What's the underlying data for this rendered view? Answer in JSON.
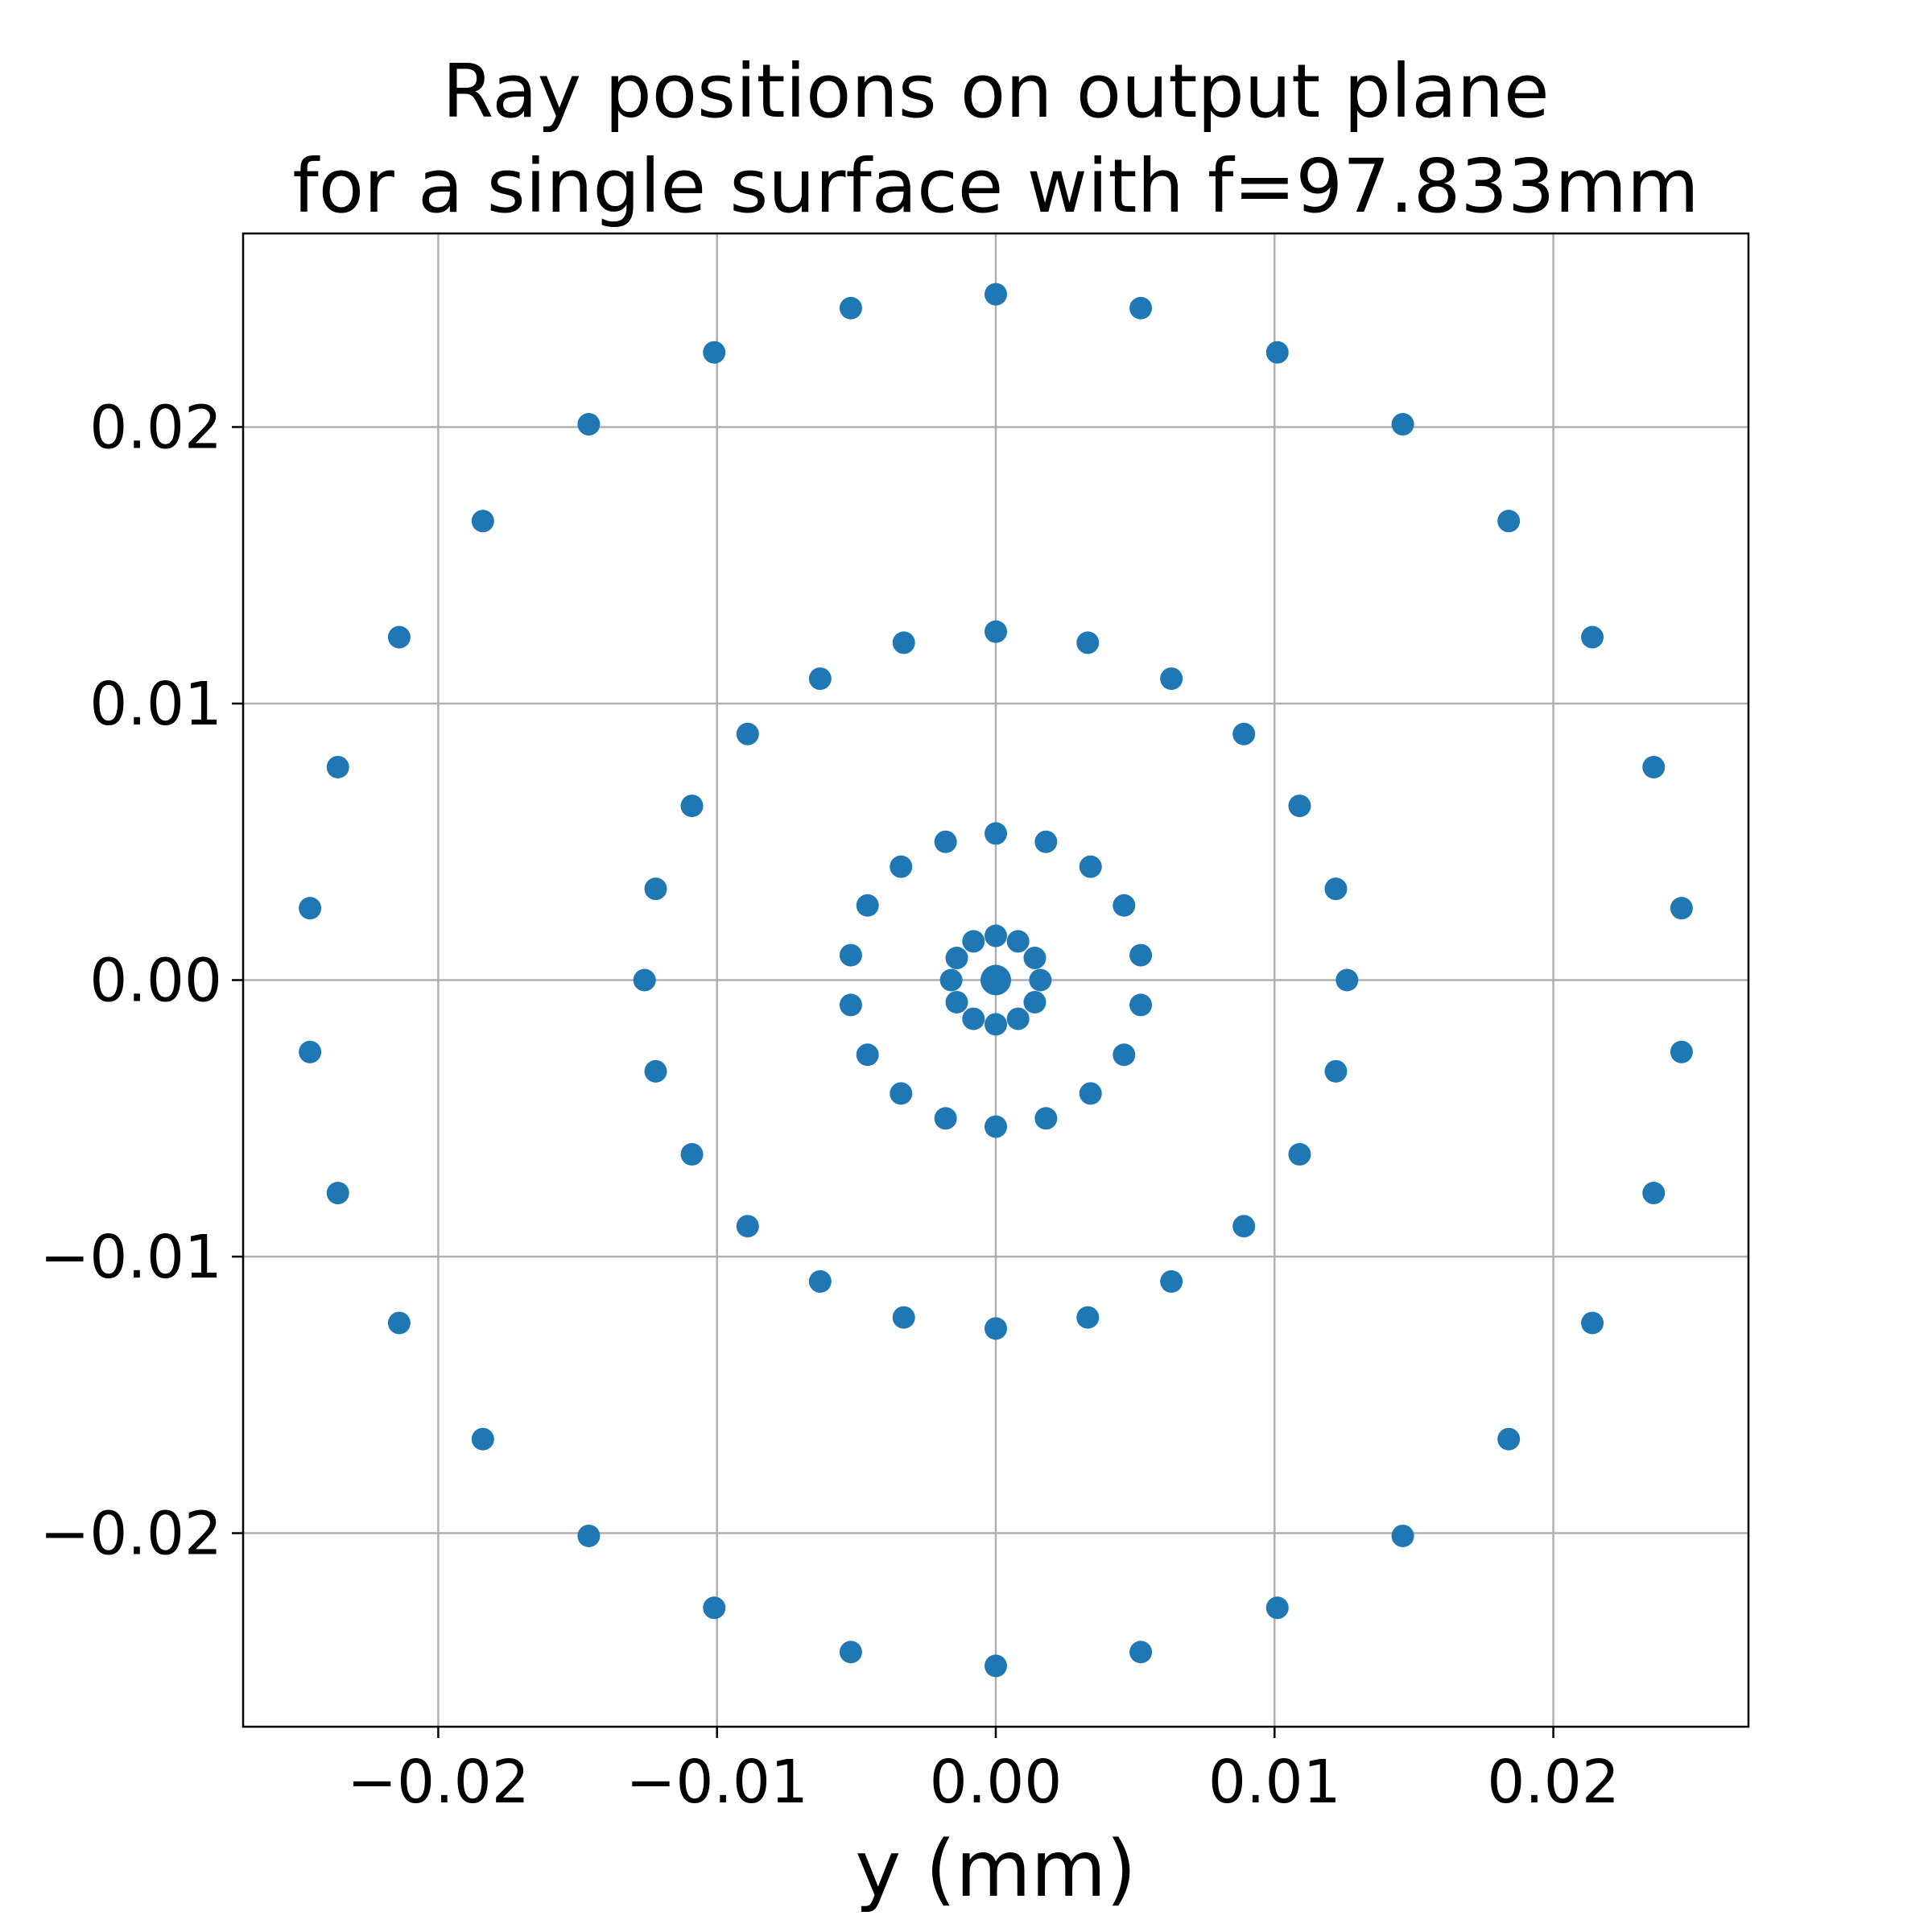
{
  "chart_data": {
    "type": "scatter",
    "title": [
      "Ray positions on output plane",
      "for a single surface with f=97.833mm"
    ],
    "xlabel": "y (mm)",
    "ylabel": "",
    "xlim": [
      -0.027,
      0.027
    ],
    "ylim": [
      -0.027,
      0.027
    ],
    "xticks": [
      -0.02,
      -0.01,
      0.0,
      0.01,
      0.02
    ],
    "yticks": [
      -0.02,
      -0.01,
      0.0,
      0.01,
      0.02
    ],
    "xtick_labels": [
      "−0.02",
      "−0.01",
      "0.00",
      "0.01",
      "0.02"
    ],
    "ytick_labels": [
      "−0.02",
      "−0.01",
      "0.00",
      "0.01",
      "0.02"
    ],
    "grid": true,
    "marker_color": "#1f77b4",
    "series": [
      {
        "points": [
          [
            0.0,
            0.0
          ],
          [
            0.0,
            0.0016
          ],
          [
            0.0008,
            0.0014
          ],
          [
            0.0014,
            0.0008
          ],
          [
            0.0016,
            0.0
          ],
          [
            0.0014,
            -0.0008
          ],
          [
            0.0008,
            -0.0014
          ],
          [
            0.0,
            -0.0016
          ],
          [
            -0.0008,
            -0.0014
          ],
          [
            -0.0014,
            -0.0008
          ],
          [
            -0.0016,
            0.0
          ],
          [
            -0.0014,
            0.0008
          ],
          [
            -0.0008,
            0.0014
          ],
          [
            0.0,
            0.0053
          ],
          [
            0.0018,
            0.005
          ],
          [
            0.0034,
            0.0041
          ],
          [
            0.0046,
            0.0027
          ],
          [
            0.0052,
            0.0009
          ],
          [
            0.0052,
            -0.0009
          ],
          [
            0.0046,
            -0.0027
          ],
          [
            0.0034,
            -0.0041
          ],
          [
            0.0018,
            -0.005
          ],
          [
            0.0,
            -0.0053
          ],
          [
            -0.0018,
            -0.005
          ],
          [
            -0.0034,
            -0.0041
          ],
          [
            -0.0046,
            -0.0027
          ],
          [
            -0.0052,
            -0.0009
          ],
          [
            -0.0052,
            0.0009
          ],
          [
            -0.0046,
            0.0027
          ],
          [
            -0.0034,
            0.0041
          ],
          [
            -0.0018,
            0.005
          ],
          [
            0.0,
            0.0126
          ],
          [
            0.0033,
            0.0122
          ],
          [
            0.0063,
            0.0109
          ],
          [
            0.0089,
            0.0089
          ],
          [
            0.0109,
            0.0063
          ],
          [
            0.0122,
            0.0033
          ],
          [
            0.0126,
            0.0
          ],
          [
            0.0122,
            -0.0033
          ],
          [
            0.0109,
            -0.0063
          ],
          [
            0.0089,
            -0.0089
          ],
          [
            0.0063,
            -0.0109
          ],
          [
            0.0033,
            -0.0122
          ],
          [
            0.0,
            -0.0126
          ],
          [
            -0.0033,
            -0.0122
          ],
          [
            -0.0063,
            -0.0109
          ],
          [
            -0.0089,
            -0.0089
          ],
          [
            -0.0109,
            -0.0063
          ],
          [
            -0.0122,
            -0.0033
          ],
          [
            -0.0126,
            0.0
          ],
          [
            -0.0122,
            0.0033
          ],
          [
            -0.0109,
            0.0063
          ],
          [
            -0.0089,
            0.0089
          ],
          [
            -0.0063,
            0.0109
          ],
          [
            -0.0033,
            0.0122
          ],
          [
            0.0,
            0.0248
          ],
          [
            0.0052,
            0.0243
          ],
          [
            0.0101,
            0.0227
          ],
          [
            0.0146,
            0.0201
          ],
          [
            0.0184,
            0.0166
          ],
          [
            0.0214,
            0.0124
          ],
          [
            0.0236,
            0.0077
          ],
          [
            0.0246,
            0.0026
          ],
          [
            0.0246,
            -0.0026
          ],
          [
            0.0236,
            -0.0077
          ],
          [
            0.0214,
            -0.0124
          ],
          [
            0.0184,
            -0.0166
          ],
          [
            0.0146,
            -0.0201
          ],
          [
            0.0101,
            -0.0227
          ],
          [
            0.0052,
            -0.0243
          ],
          [
            0.0,
            -0.0248
          ],
          [
            -0.0052,
            -0.0243
          ],
          [
            -0.0101,
            -0.0227
          ],
          [
            -0.0146,
            -0.0201
          ],
          [
            -0.0184,
            -0.0166
          ],
          [
            -0.0214,
            -0.0124
          ],
          [
            -0.0236,
            -0.0077
          ],
          [
            -0.0246,
            -0.0026
          ],
          [
            -0.0246,
            0.0026
          ],
          [
            -0.0236,
            0.0077
          ],
          [
            -0.0214,
            0.0124
          ],
          [
            -0.0184,
            0.0166
          ],
          [
            -0.0146,
            0.0201
          ],
          [
            -0.0101,
            0.0227
          ],
          [
            -0.0052,
            0.0243
          ]
        ]
      }
    ]
  }
}
